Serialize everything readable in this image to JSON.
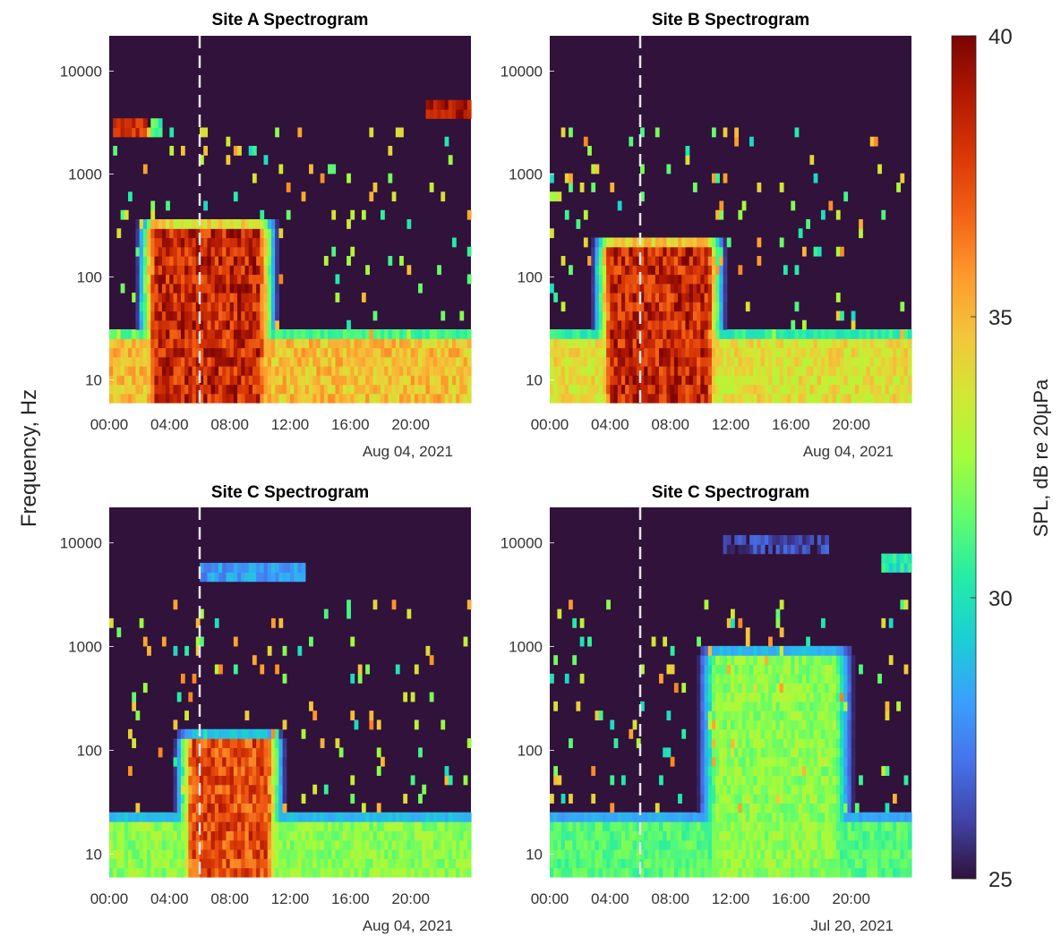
{
  "figure": {
    "ylabel": "Frequency, Hz",
    "colorbar": {
      "label": "SPL, dB re 20μPa",
      "min": 25,
      "max": 40,
      "ticks": [
        25,
        30,
        35,
        40
      ],
      "colormap": "turbo",
      "colors": [
        "#30123b",
        "#4145ab",
        "#4675ed",
        "#39a2fc",
        "#1bcfd4",
        "#24eca6",
        "#61fc6c",
        "#a4fc3b",
        "#d1e834",
        "#f3c63a",
        "#fe9b2d",
        "#f36315",
        "#d93806",
        "#b11901",
        "#7a0403"
      ]
    },
    "dashed_line_color": "#e6e6e6"
  },
  "chart_data": [
    {
      "type": "heatmap",
      "title": "Site A Spectrogram",
      "date_label": "Aug 04, 2021",
      "xticks": [
        "00:00",
        "04:00",
        "08:00",
        "12:00",
        "16:00",
        "20:00"
      ],
      "yticks": [
        "10",
        "100",
        "1000",
        "10000"
      ],
      "x_range_hours": [
        0,
        24
      ],
      "y_range_hz": [
        6,
        22000
      ],
      "y_scale": "log",
      "marker_hour": 6,
      "bursts": [
        {
          "t0": 3.0,
          "t1": 10.0,
          "f_top": 300,
          "level": 40
        },
        {
          "t0": 0.0,
          "t1": 24.0,
          "f_top": 25,
          "level": 36
        }
      ],
      "hf_tones": [
        {
          "t0": 0.3,
          "t1": 2.5,
          "f": 3000,
          "level": 39
        },
        {
          "t0": 21.0,
          "t1": 24.0,
          "f": 4000,
          "level": 40
        },
        {
          "t0": 2.8,
          "t1": 3.6,
          "f": 2800,
          "level": 32
        }
      ]
    },
    {
      "type": "heatmap",
      "title": "Site B Spectrogram",
      "date_label": "Aug 04, 2021",
      "xticks": [
        "00:00",
        "04:00",
        "08:00",
        "12:00",
        "16:00",
        "20:00"
      ],
      "yticks": [
        "10",
        "100",
        "1000",
        "10000"
      ],
      "x_range_hours": [
        0,
        24
      ],
      "y_range_hz": [
        6,
        22000
      ],
      "y_scale": "log",
      "marker_hour": 6,
      "bursts": [
        {
          "t0": 4.0,
          "t1": 10.5,
          "f_top": 200,
          "level": 40
        },
        {
          "t0": 0.0,
          "t1": 24.0,
          "f_top": 25,
          "level": 35
        }
      ],
      "hf_tones": []
    },
    {
      "type": "heatmap",
      "title": "Site C Spectrogram",
      "date_label": "Aug 04, 2021",
      "xticks": [
        "00:00",
        "04:00",
        "08:00",
        "12:00",
        "16:00",
        "20:00"
      ],
      "yticks": [
        "10",
        "100",
        "1000",
        "10000"
      ],
      "x_range_hours": [
        0,
        24
      ],
      "y_range_hz": [
        6,
        22000
      ],
      "y_scale": "log",
      "marker_hour": 6,
      "bursts": [
        {
          "t0": 5.5,
          "t1": 10.5,
          "f_top": 120,
          "level": 39
        },
        {
          "t0": 0.0,
          "t1": 24.0,
          "f_top": 20,
          "level": 33
        }
      ],
      "hf_tones": [
        {
          "t0": 6.0,
          "t1": 13.0,
          "f": 5000,
          "level": 29
        }
      ]
    },
    {
      "type": "heatmap",
      "title": "Site C Spectrogram",
      "date_label": "Jul 20, 2021",
      "xticks": [
        "00:00",
        "04:00",
        "08:00",
        "12:00",
        "16:00",
        "20:00"
      ],
      "yticks": [
        "10",
        "100",
        "1000",
        "10000"
      ],
      "x_range_hours": [
        0,
        24
      ],
      "y_range_hz": [
        6,
        22000
      ],
      "y_scale": "log",
      "marker_hour": 6,
      "bursts": [
        {
          "t0": 11.0,
          "t1": 19.0,
          "f_top": 800,
          "level": 33
        },
        {
          "t0": 0.0,
          "t1": 24.0,
          "f_top": 20,
          "level": 32
        }
      ],
      "hf_tones": [
        {
          "t0": 22.0,
          "t1": 24.0,
          "f": 6000,
          "level": 31
        },
        {
          "t0": 11.5,
          "t1": 18.5,
          "f": 9000,
          "level": 27
        }
      ]
    }
  ]
}
